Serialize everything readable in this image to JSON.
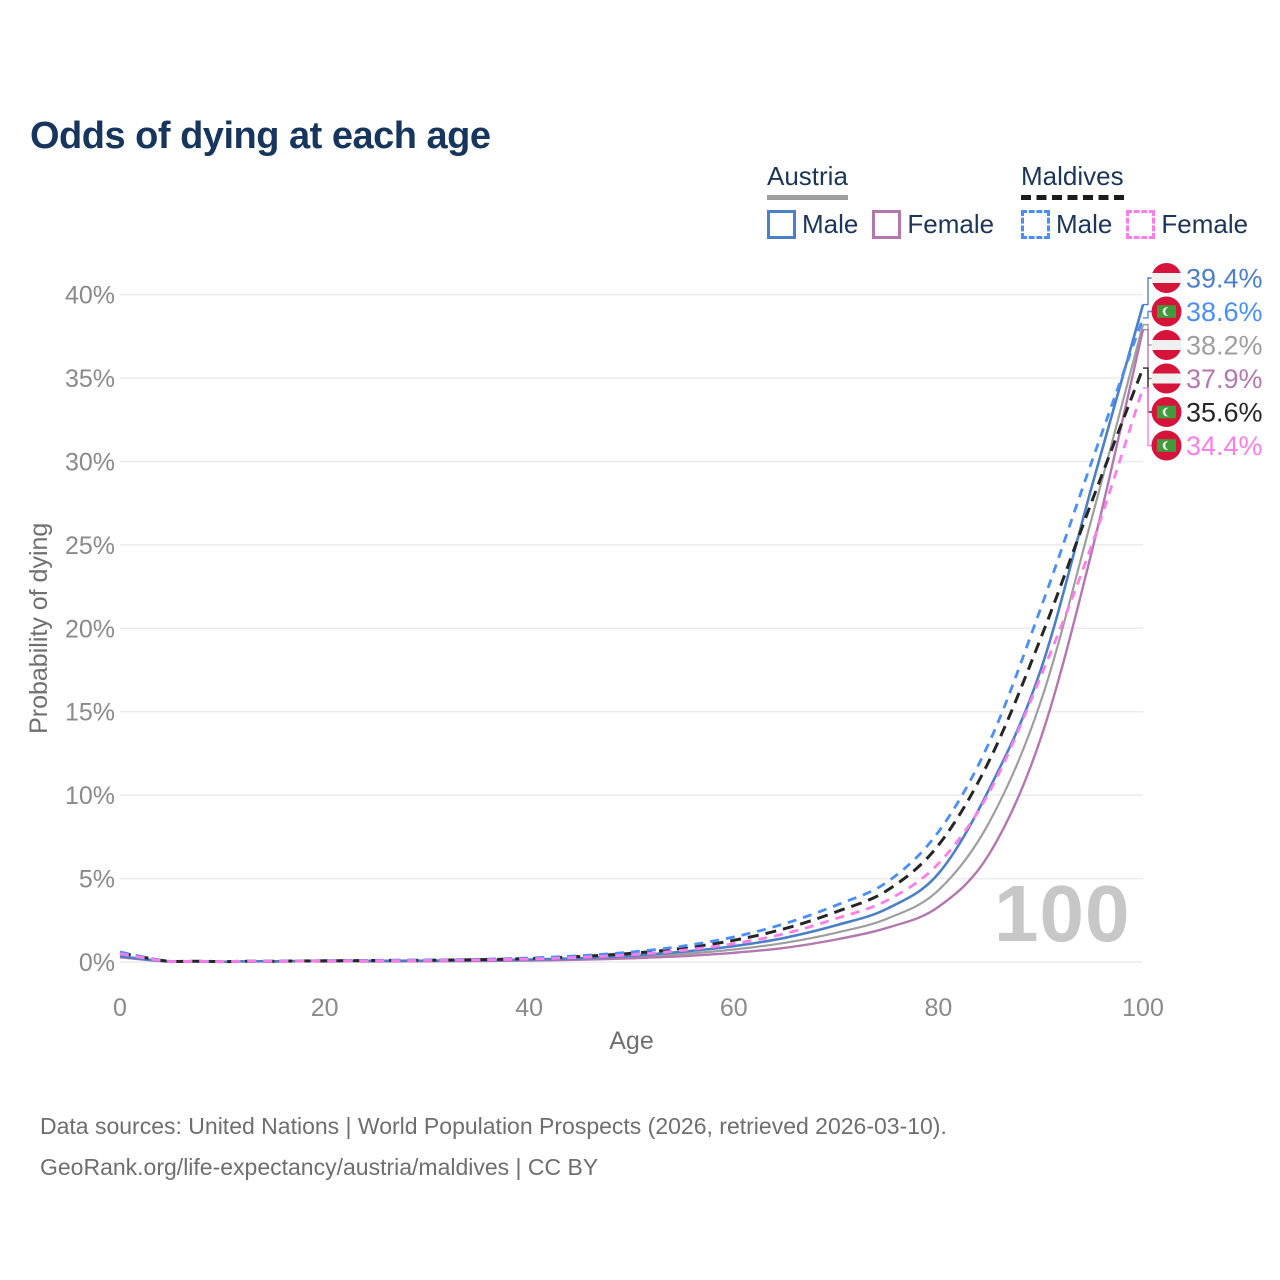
{
  "title": "Odds of dying at each age",
  "legend": {
    "groups": [
      {
        "label": "Austria",
        "line_style": "solid",
        "line_color": "#9e9e9e",
        "items": [
          {
            "label": "Male",
            "swatch_color": "#4c80c6",
            "swatch_style": "solid"
          },
          {
            "label": "Female",
            "swatch_color": "#b377af",
            "swatch_style": "solid"
          }
        ]
      },
      {
        "label": "Maldives",
        "line_style": "dashed",
        "line_color": "#1c1c1c",
        "items": [
          {
            "label": "Male",
            "swatch_color": "#4a8ef8",
            "swatch_style": "dashed"
          },
          {
            "label": "Female",
            "swatch_color": "#fd7de9",
            "swatch_style": "dashed"
          }
        ]
      }
    ]
  },
  "chart_data": {
    "type": "line",
    "title": "Odds of dying at each age",
    "xlabel": "Age",
    "ylabel": "Probability of dying",
    "xlim": [
      0,
      100
    ],
    "ylim": [
      0,
      40
    ],
    "x_ticks": [
      "0",
      "20",
      "40",
      "60",
      "80",
      "100"
    ],
    "y_ticks": [
      "0%",
      "5%",
      "10%",
      "15%",
      "20%",
      "25%",
      "30%",
      "35%",
      "40%"
    ],
    "grid": "horizontal",
    "legend_position": "top-right",
    "ages": [
      0,
      5,
      10,
      15,
      20,
      25,
      30,
      35,
      40,
      45,
      50,
      55,
      60,
      65,
      70,
      75,
      80,
      85,
      90,
      95,
      100
    ],
    "series": [
      {
        "id": "austria-male",
        "name": "Austria Male",
        "country": "Austria",
        "sex": "Male",
        "color": "#4c80c6",
        "dash": false,
        "end_label": "39.4%",
        "end_value": 39.4,
        "values": [
          0.35,
          0.01,
          0.01,
          0.04,
          0.07,
          0.07,
          0.08,
          0.1,
          0.15,
          0.23,
          0.38,
          0.62,
          0.95,
          1.45,
          2.2,
          3.2,
          5.3,
          10.4,
          17.5,
          28.5,
          39.4
        ]
      },
      {
        "id": "maldives-male",
        "name": "Maldives Male",
        "country": "Maldives",
        "sex": "Male",
        "color": "#4a8ef8",
        "dash": true,
        "end_label": "38.6%",
        "end_value": 38.6,
        "values": [
          0.6,
          0.03,
          0.02,
          0.05,
          0.08,
          0.1,
          0.12,
          0.16,
          0.24,
          0.38,
          0.6,
          0.95,
          1.5,
          2.3,
          3.4,
          4.8,
          7.8,
          13.2,
          21.2,
          30.0,
          38.6
        ]
      },
      {
        "id": "austria-both",
        "name": "Austria (both sexes)",
        "country": "Austria",
        "sex": "Both",
        "color": "#9e9e9e",
        "dash": false,
        "end_label": "38.2%",
        "end_value": 38.2,
        "values": [
          0.32,
          0.01,
          0.01,
          0.03,
          0.05,
          0.05,
          0.06,
          0.08,
          0.12,
          0.18,
          0.3,
          0.48,
          0.75,
          1.15,
          1.75,
          2.6,
          4.3,
          8.4,
          15.6,
          26.6,
          38.2
        ]
      },
      {
        "id": "austria-female",
        "name": "Austria Female",
        "country": "Austria",
        "sex": "Female",
        "color": "#b377af",
        "dash": false,
        "end_label": "37.9%",
        "end_value": 37.9,
        "values": [
          0.28,
          0.01,
          0.01,
          0.02,
          0.03,
          0.03,
          0.04,
          0.06,
          0.09,
          0.14,
          0.22,
          0.35,
          0.55,
          0.85,
          1.35,
          2.05,
          3.3,
          6.5,
          13.4,
          24.6,
          37.9
        ]
      },
      {
        "id": "maldives-both",
        "name": "Maldives (both sexes)",
        "country": "Maldives",
        "sex": "Both",
        "color": "#262626",
        "dash": true,
        "end_label": "35.6%",
        "end_value": 35.6,
        "values": [
          0.55,
          0.03,
          0.02,
          0.05,
          0.07,
          0.09,
          0.11,
          0.14,
          0.21,
          0.33,
          0.52,
          0.82,
          1.3,
          2.0,
          3.0,
          4.3,
          7.0,
          12.1,
          19.4,
          27.6,
          35.6
        ]
      },
      {
        "id": "maldives-female",
        "name": "Maldives Female",
        "country": "Maldives",
        "sex": "Female",
        "color": "#fd7de9",
        "dash": true,
        "end_label": "34.4%",
        "end_value": 34.4,
        "values": [
          0.5,
          0.02,
          0.02,
          0.04,
          0.06,
          0.07,
          0.09,
          0.12,
          0.18,
          0.28,
          0.44,
          0.7,
          1.1,
          1.7,
          2.6,
          3.7,
          5.9,
          10.2,
          17.1,
          25.0,
          34.4
        ]
      }
    ]
  },
  "flag_colors": {
    "red": "#d6133a",
    "white": "#f0f0f0",
    "green": "#3f9b3b"
  },
  "watermark": "100",
  "footer": {
    "line1": "Data sources: United Nations | World Population Prospects (2026, retrieved 2026-03-10).",
    "line2": "GeoRank.org/life-expectancy/austria/maldives | CC BY"
  }
}
